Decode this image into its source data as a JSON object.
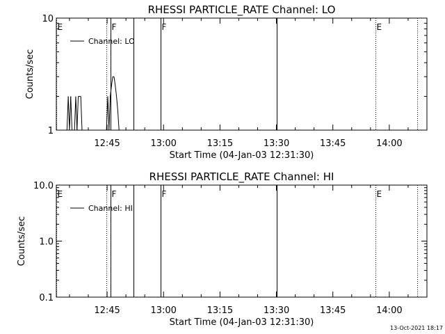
{
  "footer": {
    "timestamp": "13-Oct-2021 18:17"
  },
  "chart_data": [
    {
      "type": "line",
      "title": "RHESSI PARTICLE_RATE Channel: LO",
      "xlabel": "Start Time (04-Jan-03 12:31:30)",
      "ylabel": "Counts/sec",
      "x_tick_labels": [
        "12:45",
        "13:00",
        "13:15",
        "13:30",
        "13:45",
        "14:00"
      ],
      "y_tick_labels": [
        "1",
        "10"
      ],
      "ylim": [
        1,
        10
      ],
      "y_scale": "log",
      "legend": {
        "entries": [
          "Channel: LO"
        ],
        "placement": "top-left"
      },
      "markers": [
        {
          "label": "E",
          "time": "12:31:30",
          "style": "dotted"
        },
        {
          "label": "",
          "time": "12:44:50",
          "style": "dotted"
        },
        {
          "label": "F",
          "time": "12:45:50",
          "style": "solid"
        },
        {
          "label": "",
          "time": "12:52:00",
          "style": "solid"
        },
        {
          "label": "F",
          "time": "12:59:10",
          "style": "solid"
        },
        {
          "label": "",
          "time": "13:30:00",
          "style": "solid"
        },
        {
          "label": "E",
          "time": "13:56:20",
          "style": "dotted"
        },
        {
          "label": "",
          "time": "14:07:20",
          "style": "dotted"
        }
      ],
      "series": [
        {
          "name": "Channel: LO",
          "points": [
            [
              "12:34:20",
              1
            ],
            [
              "12:34:40",
              2
            ],
            [
              "12:35:00",
              1
            ],
            [
              "12:35:20",
              2
            ],
            [
              "12:35:40",
              1
            ],
            [
              "12:36:20",
              1
            ],
            [
              "12:36:40",
              2
            ],
            [
              "12:37:00",
              1
            ],
            [
              "12:37:20",
              2
            ],
            [
              "12:38:00",
              2
            ],
            [
              "12:38:20",
              1
            ],
            [
              "12:44:50",
              1
            ],
            [
              "12:45:10",
              2
            ],
            [
              "12:45:30",
              1
            ],
            [
              "12:45:50",
              2
            ],
            [
              "12:46:10",
              2.5
            ],
            [
              "12:46:30",
              3
            ],
            [
              "12:46:50",
              3
            ],
            [
              "12:47:10",
              2.5
            ],
            [
              "12:47:30",
              2
            ],
            [
              "12:47:50",
              1.5
            ],
            [
              "12:48:10",
              1
            ]
          ]
        }
      ]
    },
    {
      "type": "line",
      "title": "RHESSI PARTICLE_RATE Channel: HI",
      "xlabel": "Start Time (04-Jan-03 12:31:30)",
      "ylabel": "Counts/sec",
      "x_tick_labels": [
        "12:45",
        "13:00",
        "13:15",
        "13:30",
        "13:45",
        "14:00"
      ],
      "y_tick_labels": [
        "0.1",
        "1.0",
        "10.0"
      ],
      "ylim": [
        0.1,
        10
      ],
      "y_scale": "log",
      "legend": {
        "entries": [
          "Channel: HI"
        ],
        "placement": "top-left"
      },
      "markers": [
        {
          "label": "E",
          "time": "12:31:30",
          "style": "dotted"
        },
        {
          "label": "",
          "time": "12:44:50",
          "style": "dotted"
        },
        {
          "label": "F",
          "time": "12:45:50",
          "style": "solid"
        },
        {
          "label": "",
          "time": "12:52:00",
          "style": "solid"
        },
        {
          "label": "F",
          "time": "12:59:10",
          "style": "solid"
        },
        {
          "label": "",
          "time": "13:30:00",
          "style": "solid"
        },
        {
          "label": "E",
          "time": "13:56:20",
          "style": "dotted"
        },
        {
          "label": "",
          "time": "14:07:20",
          "style": "dotted"
        }
      ],
      "series": [
        {
          "name": "Channel: HI",
          "points": []
        }
      ]
    }
  ]
}
